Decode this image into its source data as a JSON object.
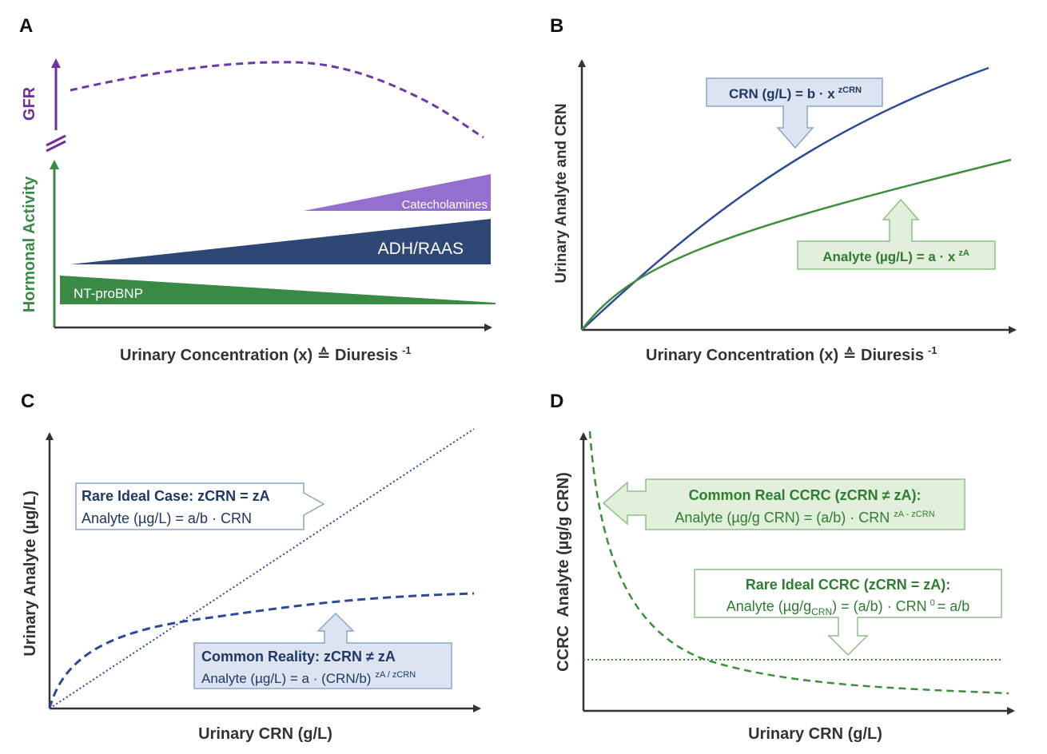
{
  "colors": {
    "gfr_purple": "#7030a0",
    "catecholamines": "#9370d0",
    "adh_raas": "#2f4775",
    "nt_probnp": "#3a8a46",
    "crn_blue": "#2b4a9a",
    "analyte_green": "#3d8f3d",
    "callout_blue_fill": "#dce4f1",
    "callout_green_fill": "#e2efda"
  },
  "panel_a": {
    "label": "A",
    "y_label_top": "GFR",
    "y_label_bottom": "Hormonal Activity",
    "x_label": "Urinary Concentration (x) ≙ Diuresis",
    "x_label_sup": "-1",
    "bands": [
      "Catecholamines",
      "ADH/RAAS",
      "NT-proBNP"
    ]
  },
  "panel_b": {
    "label": "B",
    "y_label": "Urinary Analyte and CRN",
    "x_label": "Urinary Concentration (x) ≙ Diuresis",
    "x_label_sup": "-1",
    "crn_callout": {
      "text": "CRN (g/L) = b · x",
      "sup": "zCRN"
    },
    "analyte_callout": {
      "text": "Analyte (µg/L) = a · x",
      "sup": "zA"
    }
  },
  "panel_c": {
    "label": "C",
    "y_label": "Urinary Analyte (µg/L)",
    "x_label": "Urinary CRN (g/L)",
    "ideal_callout": {
      "title": "Rare Ideal Case: zCRN = zA",
      "formula": "Analyte (µg/L) = a/b · CRN"
    },
    "reality_callout": {
      "title": "Common Reality: zCRN ≠ zA",
      "formula": "Analyte (µg/L) = a · (CRN/b)",
      "sup": "zA / zCRN"
    }
  },
  "panel_d": {
    "label": "D",
    "y_label": "CCRC  Analyte (µg/g CRN)",
    "x_label": "Urinary CRN (g/L)",
    "real_callout": {
      "title": "Common Real CCRC (zCRN ≠ zA):",
      "formula": "Analyte (µg/g CRN) = (a/b) · CRN",
      "sup": "zA - zCRN"
    },
    "ideal_callout": {
      "title": "Rare Ideal CCRC (zCRN = zA):",
      "formula_a": "Analyte (µg/g",
      "formula_sub": "CRN",
      "formula_b": ") = (a/b) · CRN",
      "sup": "0",
      "formula_c": "= a/b"
    }
  }
}
